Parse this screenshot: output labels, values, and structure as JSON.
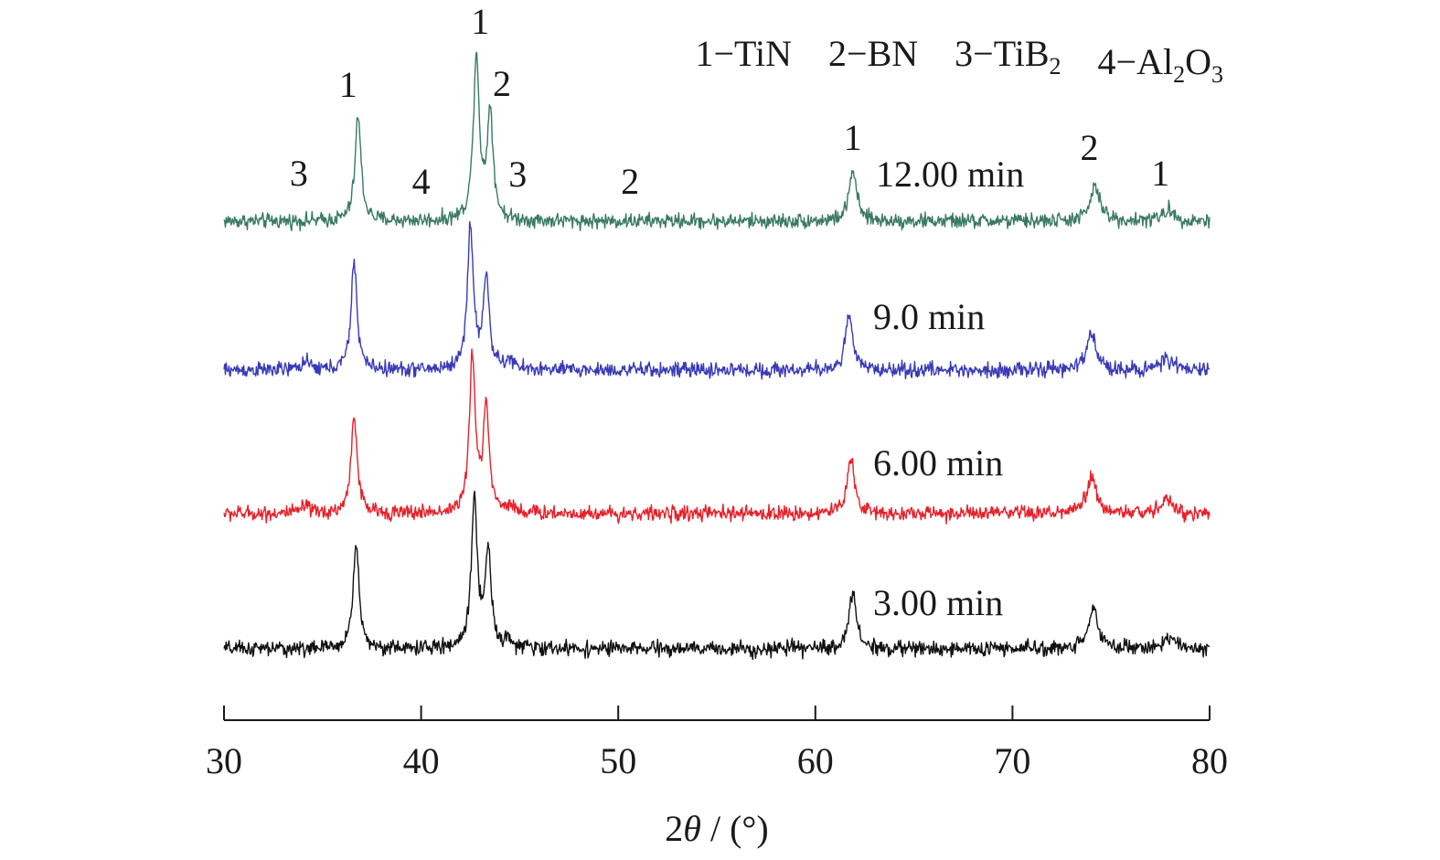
{
  "chart_data": {
    "type": "line",
    "title": "",
    "xlabel": "2θ / (°)",
    "ylabel": "",
    "xlim": [
      30,
      80
    ],
    "xticks": [
      30,
      40,
      50,
      60,
      70,
      80
    ],
    "grid": false,
    "legend": {
      "placement": "top-right",
      "entries": [
        {
          "num": "1",
          "name": "TiN"
        },
        {
          "num": "2",
          "name": "BN"
        },
        {
          "num": "3",
          "name": "TiB",
          "sub": "2"
        },
        {
          "num": "4",
          "name": "Al",
          "sub": "2",
          "name2": "O",
          "sub2": "3"
        }
      ]
    },
    "series": [
      {
        "name": "12.00 min",
        "color": "#3a7a62",
        "baseline": 1.0,
        "peaks": [
          {
            "x": 36.8,
            "height": 0.78,
            "width": 0.18
          },
          {
            "x": 42.8,
            "height": 1.22,
            "width": 0.18
          },
          {
            "x": 43.5,
            "height": 0.8,
            "width": 0.18
          },
          {
            "x": 61.9,
            "height": 0.38,
            "width": 0.22
          },
          {
            "x": 74.2,
            "height": 0.25,
            "width": 0.3
          },
          {
            "x": 77.9,
            "height": 0.08,
            "width": 0.35
          }
        ],
        "peak_labels": [
          {
            "x": 33.8,
            "text": "3"
          },
          {
            "x": 36.3,
            "text": "1"
          },
          {
            "x": 40.0,
            "text": "4"
          },
          {
            "x": 43.0,
            "text": "1"
          },
          {
            "x": 44.1,
            "text": "2"
          },
          {
            "x": 44.9,
            "text": "3"
          },
          {
            "x": 50.6,
            "text": "2"
          },
          {
            "x": 61.9,
            "text": "1"
          },
          {
            "x": 73.9,
            "text": "2"
          },
          {
            "x": 77.5,
            "text": "1"
          }
        ]
      },
      {
        "name": "9.0 min",
        "color": "#3a3ab8",
        "baseline": 1.0,
        "peaks": [
          {
            "x": 34.1,
            "height": 0.06,
            "width": 0.25
          },
          {
            "x": 36.6,
            "height": 0.8,
            "width": 0.18
          },
          {
            "x": 42.5,
            "height": 1.06,
            "width": 0.18
          },
          {
            "x": 43.3,
            "height": 0.68,
            "width": 0.18
          },
          {
            "x": 44.5,
            "height": 0.06,
            "width": 0.25
          },
          {
            "x": 61.7,
            "height": 0.4,
            "width": 0.22
          },
          {
            "x": 74.0,
            "height": 0.26,
            "width": 0.3
          },
          {
            "x": 77.8,
            "height": 0.08,
            "width": 0.35
          }
        ]
      },
      {
        "name": "6.00 min",
        "color": "#e8202a",
        "baseline": 1.0,
        "peaks": [
          {
            "x": 34.1,
            "height": 0.05,
            "width": 0.25
          },
          {
            "x": 36.6,
            "height": 0.74,
            "width": 0.18
          },
          {
            "x": 42.6,
            "height": 1.14,
            "width": 0.18
          },
          {
            "x": 43.3,
            "height": 0.78,
            "width": 0.18
          },
          {
            "x": 44.5,
            "height": 0.05,
            "width": 0.25
          },
          {
            "x": 61.8,
            "height": 0.42,
            "width": 0.22
          },
          {
            "x": 74.0,
            "height": 0.26,
            "width": 0.3
          },
          {
            "x": 77.8,
            "height": 0.1,
            "width": 0.35
          }
        ]
      },
      {
        "name": "3.00 min",
        "color": "#111111",
        "baseline": 1.0,
        "peaks": [
          {
            "x": 36.7,
            "height": 0.78,
            "width": 0.18
          },
          {
            "x": 42.7,
            "height": 1.1,
            "width": 0.18
          },
          {
            "x": 43.4,
            "height": 0.72,
            "width": 0.18
          },
          {
            "x": 44.4,
            "height": 0.05,
            "width": 0.25
          },
          {
            "x": 61.9,
            "height": 0.42,
            "width": 0.22
          },
          {
            "x": 74.1,
            "height": 0.3,
            "width": 0.3
          },
          {
            "x": 77.9,
            "height": 0.08,
            "width": 0.35
          }
        ]
      }
    ]
  }
}
